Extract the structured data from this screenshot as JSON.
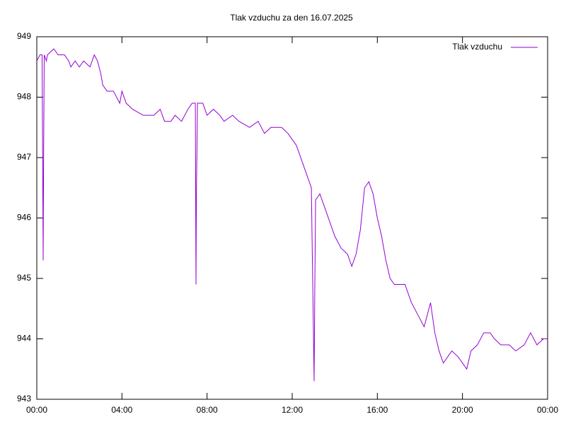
{
  "chart_data": {
    "type": "line",
    "title": "Tlak vzduchu za den 16.07.2025",
    "x": [
      0.0,
      0.15,
      0.25,
      0.3,
      0.32,
      0.35,
      0.45,
      0.5,
      0.8,
      1.0,
      1.3,
      1.5,
      1.6,
      1.8,
      2.0,
      2.2,
      2.5,
      2.7,
      2.85,
      3.0,
      3.1,
      3.3,
      3.6,
      3.9,
      4.0,
      4.2,
      4.5,
      5.0,
      5.5,
      5.8,
      6.0,
      6.3,
      6.5,
      6.8,
      7.1,
      7.3,
      7.45,
      7.48,
      7.5,
      7.55,
      7.8,
      8.0,
      8.3,
      8.6,
      8.8,
      9.2,
      9.5,
      10.0,
      10.4,
      10.7,
      11.0,
      11.5,
      11.8,
      12.0,
      12.2,
      12.5,
      12.7,
      12.9,
      13.03,
      13.06,
      13.1,
      13.3,
      13.6,
      13.8,
      14.0,
      14.3,
      14.6,
      14.8,
      15.0,
      15.2,
      15.4,
      15.6,
      15.8,
      16.0,
      16.2,
      16.4,
      16.6,
      16.8,
      17.0,
      17.3,
      17.6,
      17.9,
      18.2,
      18.5,
      18.7,
      18.9,
      19.1,
      19.3,
      19.5,
      19.8,
      20.0,
      20.2,
      20.4,
      20.7,
      21.0,
      21.3,
      21.5,
      21.8,
      22.2,
      22.5,
      22.9,
      23.2,
      23.5,
      23.8,
      24.0
    ],
    "series": [
      {
        "name": "Tlak vzduchu",
        "color": "#9400d3",
        "values": [
          948.6,
          948.7,
          948.7,
          945.3,
          947.0,
          948.7,
          948.6,
          948.7,
          948.8,
          948.7,
          948.7,
          948.6,
          948.5,
          948.6,
          948.5,
          948.6,
          948.5,
          948.7,
          948.6,
          948.4,
          948.2,
          948.1,
          948.1,
          947.9,
          948.1,
          947.9,
          947.8,
          947.7,
          947.7,
          947.8,
          947.6,
          947.6,
          947.7,
          947.6,
          947.8,
          947.9,
          947.9,
          944.9,
          946.4,
          947.9,
          947.9,
          947.7,
          947.8,
          947.7,
          947.6,
          947.7,
          947.6,
          947.5,
          947.6,
          947.4,
          947.5,
          947.5,
          947.4,
          947.3,
          947.2,
          946.9,
          946.7,
          946.5,
          943.3,
          944.8,
          946.3,
          946.4,
          946.1,
          945.9,
          945.7,
          945.5,
          945.4,
          945.2,
          945.4,
          945.8,
          946.5,
          946.6,
          946.4,
          946.0,
          945.7,
          945.3,
          945.0,
          944.9,
          944.9,
          944.9,
          944.6,
          944.4,
          944.2,
          944.6,
          944.1,
          943.8,
          943.6,
          943.7,
          943.8,
          943.7,
          943.6,
          943.5,
          943.8,
          943.9,
          944.1,
          944.1,
          944.0,
          943.9,
          943.9,
          943.8,
          943.9,
          944.1,
          943.9,
          944.0,
          944.0
        ]
      }
    ],
    "xlim": [
      0,
      24
    ],
    "xticks": [
      {
        "value": 0,
        "label": "00:00"
      },
      {
        "value": 4,
        "label": "04:00"
      },
      {
        "value": 8,
        "label": "08:00"
      },
      {
        "value": 12,
        "label": "12:00"
      },
      {
        "value": 16,
        "label": "16:00"
      },
      {
        "value": 20,
        "label": "20:00"
      },
      {
        "value": 24,
        "label": "00:00"
      }
    ],
    "ylim": [
      943,
      949
    ],
    "yticks": [
      943,
      944,
      945,
      946,
      947,
      948,
      949
    ],
    "grid": false,
    "legend": "top right"
  }
}
